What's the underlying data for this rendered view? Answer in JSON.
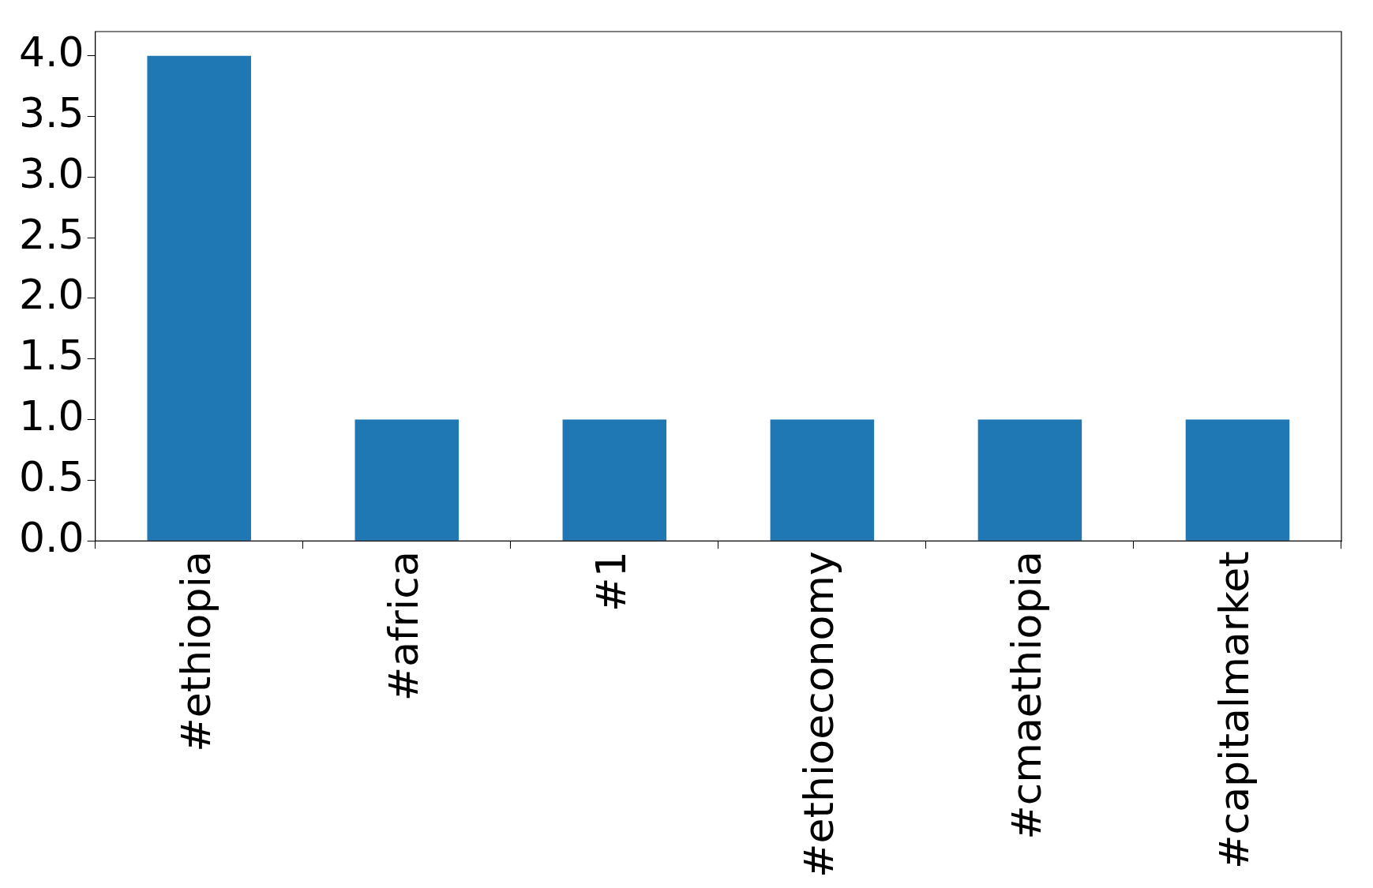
{
  "chart_data": {
    "type": "bar",
    "categories": [
      "#ethiopia",
      "#africa",
      "#1",
      "#ethioeconomy",
      "#cmaethiopia",
      "#capitalmarket"
    ],
    "values": [
      4,
      1,
      1,
      1,
      1,
      1
    ],
    "color": "#1f77b4",
    "ylim": [
      0,
      4.2
    ],
    "yticks": [
      {
        "value": 0,
        "label": "0.0"
      },
      {
        "value": 0.5,
        "label": "0.5"
      },
      {
        "value": 1,
        "label": "1.0"
      },
      {
        "value": 1.5,
        "label": "1.5"
      },
      {
        "value": 2,
        "label": "2.0"
      },
      {
        "value": 2.5,
        "label": "2.5"
      },
      {
        "value": 3,
        "label": "3.0"
      },
      {
        "value": 3.5,
        "label": "3.5"
      },
      {
        "value": 4,
        "label": "4.0"
      }
    ],
    "grid": false,
    "legend": false
  }
}
